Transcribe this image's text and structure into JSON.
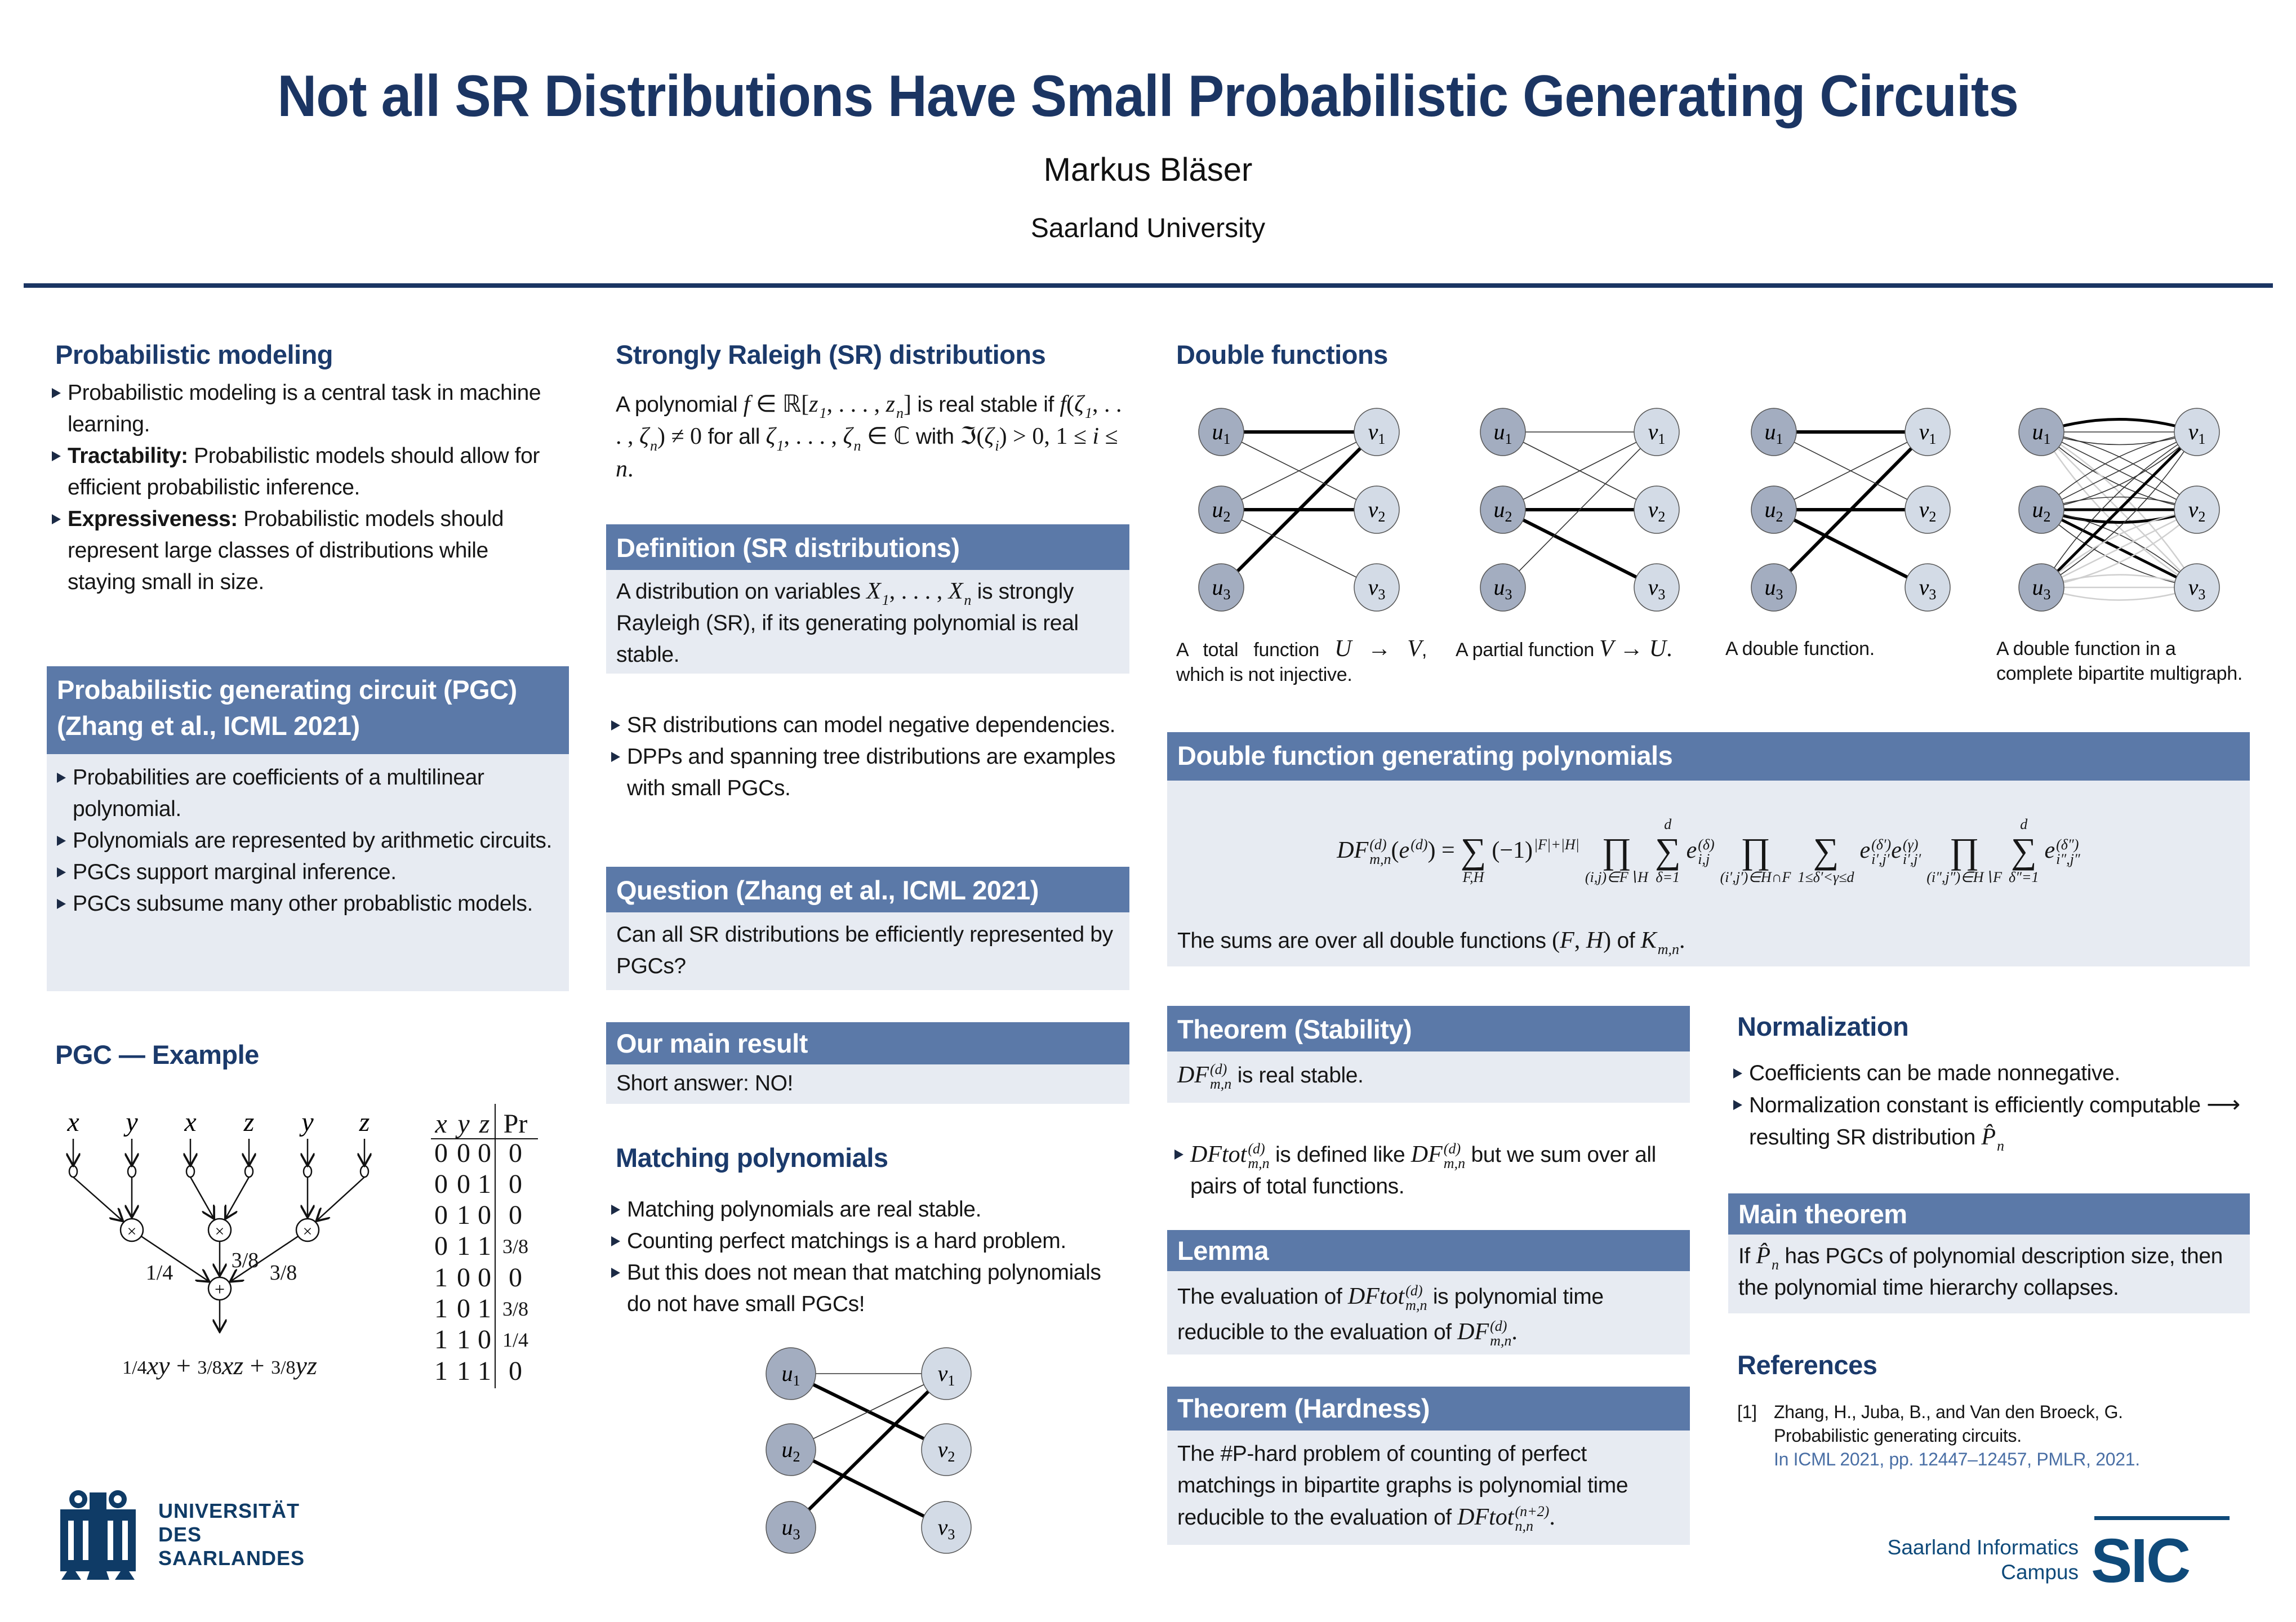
{
  "header": {
    "title": "Not all SR Distributions Have Small Probabilistic Generating Circuits",
    "author": "Markus Bläser",
    "affiliation": "Saarland University"
  },
  "colors": {
    "title": "#1b3563",
    "bar": "#5b79a8",
    "box": "#e7ebf2",
    "node_u": "#a3adc0",
    "node_v": "#d3dbe6"
  },
  "modeling": {
    "heading": "Probabilistic modeling",
    "bullets": [
      [
        {
          "t": "Probabilistic modeling is a central task in machine learning."
        }
      ],
      [
        {
          "b": "Tractability:"
        },
        {
          "t": " Probabilistic models should allow for efficient probabilistic inference."
        }
      ],
      [
        {
          "b": "Expressiveness:"
        },
        {
          "t": " Probabilistic models should represent large classes of distributions while staying small in size."
        }
      ]
    ]
  },
  "pgc": {
    "heading1": "Probabilistic generating circuit (PGC)",
    "heading2": "(Zhang et al., ICML 2021)",
    "bullets": [
      [
        {
          "t": "Probabilities are coefficients of a multilinear polynomial."
        }
      ],
      [
        {
          "t": "Polynomials are represented by arithmetic circuits."
        }
      ],
      [
        {
          "t": "PGCs support marginal inference."
        }
      ],
      [
        {
          "t": "PGCs subsume many other probablistic models."
        }
      ]
    ]
  },
  "example": {
    "heading": "PGC — Example",
    "inputs": [
      "x",
      "y",
      "x",
      "z",
      "y",
      "z"
    ],
    "product_symbol": "×",
    "sum_symbol": "+",
    "weights": [
      "1/4",
      "3/8",
      "3/8"
    ],
    "polynomial": [
      {
        "frac": "1/4",
        "term": "xy"
      },
      {
        "frac": "3/8",
        "term": "xz"
      },
      {
        "frac": "3/8",
        "term": "yz"
      }
    ],
    "plus": "+",
    "table": {
      "headers": [
        "x",
        "y",
        "z",
        "Pr"
      ],
      "rows": [
        [
          "0",
          "0",
          "0",
          "0"
        ],
        [
          "0",
          "0",
          "1",
          "0"
        ],
        [
          "0",
          "1",
          "0",
          "0"
        ],
        [
          "0",
          "1",
          "1",
          "3/8"
        ],
        [
          "1",
          "0",
          "0",
          "0"
        ],
        [
          "1",
          "0",
          "1",
          "3/8"
        ],
        [
          "1",
          "1",
          "0",
          "1/4"
        ],
        [
          "1",
          "1",
          "1",
          "0"
        ]
      ]
    }
  },
  "uds_logo": {
    "lines": [
      "UNIVERSITÄT",
      "DES",
      "SAARLANDES"
    ]
  },
  "sr": {
    "heading": "Strongly Raleigh (SR) distributions",
    "para": [
      {
        "t": "A polynomial "
      },
      {
        "m": "f"
      },
      {
        "r": " ∈ ℝ["
      },
      {
        "m": "z",
        "sub": "1"
      },
      {
        "r": ", . . . , "
      },
      {
        "m": "z",
        "sub": "n"
      },
      {
        "r": "]"
      },
      {
        "t": " is real stable if "
      },
      {
        "m": "f"
      },
      {
        "r": "("
      },
      {
        "m": "ζ",
        "sub": "1"
      },
      {
        "r": ", . . . , "
      },
      {
        "m": "ζ",
        "sub": "n"
      },
      {
        "r": ") ≠ 0"
      },
      {
        "t": " for all "
      },
      {
        "m": "ζ",
        "sub": "1"
      },
      {
        "r": ", . . . , "
      },
      {
        "m": "ζ",
        "sub": "n"
      },
      {
        "r": " ∈ ℂ"
      },
      {
        "t": " with "
      },
      {
        "r": "ℑ("
      },
      {
        "m": "ζ",
        "sub": "i"
      },
      {
        "r": ") > 0, 1 ≤ "
      },
      {
        "m": "i"
      },
      {
        "r": " ≤ "
      },
      {
        "m": "n"
      },
      {
        "r": "."
      }
    ]
  },
  "definition": {
    "heading": "Definition (SR distributions)",
    "body": [
      {
        "t": "A distribution on variables "
      },
      {
        "m": "X",
        "sub": "1"
      },
      {
        "r": ", . . . , "
      },
      {
        "m": "X",
        "sub": "n"
      },
      {
        "t": " is strongly Rayleigh (SR), if its generating polynomial is real stable."
      }
    ]
  },
  "sr_bullets": [
    [
      {
        "t": "SR distributions can model negative dependencies."
      }
    ],
    [
      {
        "t": "DPPs and spanning tree distributions are examples with small PGCs."
      }
    ]
  ],
  "question": {
    "heading": "Question (Zhang et al., ICML 2021)",
    "body": [
      {
        "t": "Can all SR distributions be efficiently represented by PGCs?"
      }
    ]
  },
  "main_result": {
    "heading": "Our main result",
    "body": [
      {
        "t": "Short answer: NO!"
      }
    ]
  },
  "matching": {
    "heading": "Matching polynomials",
    "bullets": [
      [
        {
          "t": "Matching polynomials are real stable."
        }
      ],
      [
        {
          "t": "Counting perfect matchings is a hard problem."
        }
      ],
      [
        {
          "t": "But this does not mean that matching polynomials do not have small PGCs!"
        }
      ]
    ],
    "graph": {
      "u": [
        "u1",
        "u2",
        "u3"
      ],
      "v": [
        "v1",
        "v2",
        "v3"
      ],
      "edges": [
        [
          1,
          1,
          "thin"
        ],
        [
          1,
          2,
          "bold"
        ],
        [
          2,
          1,
          "thin"
        ],
        [
          2,
          3,
          "bold"
        ],
        [
          3,
          1,
          "bold"
        ]
      ]
    }
  },
  "double_functions": {
    "heading": "Double functions",
    "graphs": [
      {
        "edges": [
          [
            1,
            1,
            "bold"
          ],
          [
            2,
            2,
            "bold"
          ],
          [
            3,
            1,
            "bold"
          ],
          [
            1,
            2,
            "thin"
          ],
          [
            2,
            1,
            "thin"
          ],
          [
            2,
            3,
            "thin"
          ]
        ],
        "caption": [
          {
            "t": "A total function "
          },
          {
            "m": "U"
          },
          {
            "r": " → "
          },
          {
            "m": "V"
          },
          {
            "t": ", which is not injective."
          }
        ]
      },
      {
        "edges": [
          [
            1,
            1,
            "mid"
          ],
          [
            2,
            2,
            "bold"
          ],
          [
            2,
            3,
            "bold"
          ],
          [
            1,
            2,
            "thin"
          ],
          [
            2,
            1,
            "thin"
          ],
          [
            3,
            1,
            "thin"
          ]
        ],
        "caption": [
          {
            "t": "A partial function "
          },
          {
            "m": "V"
          },
          {
            "r": " → "
          },
          {
            "m": "U"
          },
          {
            "r": "."
          }
        ]
      },
      {
        "edges": [
          [
            1,
            1,
            "bold"
          ],
          [
            2,
            2,
            "bold"
          ],
          [
            3,
            1,
            "bold"
          ],
          [
            2,
            3,
            "bold"
          ],
          [
            1,
            2,
            "thin"
          ],
          [
            2,
            1,
            "thin"
          ]
        ],
        "caption": [
          {
            "t": "A double function."
          }
        ]
      },
      {
        "multigraph": true,
        "bold": [
          [
            1,
            1,
            -1
          ],
          [
            2,
            2,
            0
          ],
          [
            2,
            2,
            1
          ],
          [
            3,
            1,
            0
          ],
          [
            2,
            3,
            0
          ]
        ],
        "light_pairs": [
          [
            1,
            3
          ],
          [
            3,
            2
          ],
          [
            3,
            3
          ]
        ],
        "caption": [
          {
            "t": "A double function in a complete bipartite multigraph."
          }
        ]
      }
    ],
    "u": [
      "u1",
      "u2",
      "u3"
    ],
    "v": [
      "v1",
      "v2",
      "v3"
    ]
  },
  "dfgp": {
    "heading": "Double function generating polynomials",
    "formula": [
      {
        "seg": [
          {
            "m": "DF",
            "sup": "(d)",
            "sub": "m,n"
          },
          {
            "r": "("
          },
          {
            "m": "e",
            "sup": "(d)"
          },
          {
            "r": ") ="
          }
        ]
      },
      {
        "op": "∑",
        "below": "F,H",
        "above": ""
      },
      {
        "seg": [
          {
            "r": "(−1)"
          },
          {
            "m": "",
            "sup": "|F|+|H|"
          }
        ]
      },
      {
        "op": "∏",
        "below": "(i,j)∈F∖H",
        "above": ""
      },
      {
        "op": "∑",
        "below": "δ=1",
        "above": "d"
      },
      {
        "seg": [
          {
            "m": "e",
            "sup": "(δ)",
            "sub": "i,j"
          }
        ]
      },
      {
        "op": "∏",
        "below": "(i′,j′)∈H∩F",
        "above": ""
      },
      {
        "op": "∑",
        "below": "1≤δ′<γ≤d",
        "above": ""
      },
      {
        "seg": [
          {
            "m": "e",
            "sup": "(δ′)",
            "sub": "i′,j′"
          },
          {
            "m": "e",
            "sup": "(γ)",
            "sub": "i′,j′"
          }
        ]
      },
      {
        "op": "∏",
        "below": "(i″,j″)∈H∖F",
        "above": ""
      },
      {
        "op": "∑",
        "below": "δ″=1",
        "above": "d"
      },
      {
        "seg": [
          {
            "m": "e",
            "sup": "(δ″)",
            "sub": "i″,j″"
          }
        ]
      }
    ],
    "note": [
      {
        "t": "The sums are over all double functions "
      },
      {
        "r": "("
      },
      {
        "m": "F"
      },
      {
        "r": ", "
      },
      {
        "m": "H"
      },
      {
        "r": ")"
      },
      {
        "t": " of "
      },
      {
        "m": "K",
        "sub": "m,n"
      },
      {
        "r": "."
      }
    ]
  },
  "stability": {
    "heading": "Theorem (Stability)",
    "body": [
      {
        "m": "DF",
        "sup": "(d)",
        "sub": "m,n"
      },
      {
        "t": " is real stable."
      }
    ]
  },
  "dftot_bullet": [
    [
      {
        "m": "DFtot",
        "sup": "(d)",
        "sub": "m,n"
      },
      {
        "t": " is defined like "
      },
      {
        "m": "DF",
        "sup": "(d)",
        "sub": "m,n"
      },
      {
        "t": " but we sum over all pairs of total functions."
      }
    ]
  ],
  "lemma": {
    "heading": "Lemma",
    "body": [
      {
        "t": "The evaluation of "
      },
      {
        "m": "DFtot",
        "sup": "(d)",
        "sub": "m,n"
      },
      {
        "t": " is polynomial time reducible to the evaluation of "
      },
      {
        "m": "DF",
        "sup": "(d)",
        "sub": "m,n"
      },
      {
        "r": "."
      }
    ]
  },
  "hardness": {
    "heading": "Theorem (Hardness)",
    "body": [
      {
        "t": "The #P-hard problem of counting of perfect matchings in bipartite graphs is polynomial time reducible to the evaluation of "
      },
      {
        "m": "DFtot",
        "sup": "(n+2)",
        "sub": "n,n"
      },
      {
        "r": "."
      }
    ]
  },
  "normalization": {
    "heading": "Normalization",
    "bullets": [
      [
        {
          "t": "Coefficients can be made nonnegative."
        }
      ],
      [
        {
          "t": "Normalization constant is efficiently computable "
        },
        {
          "r": "⟶"
        },
        {
          "t": " resulting SR distribution "
        },
        {
          "m": "P̂",
          "sub": "n"
        }
      ]
    ]
  },
  "main_theorem": {
    "heading": "Main theorem",
    "body": [
      {
        "t": "If "
      },
      {
        "m": "P̂",
        "sub": "n"
      },
      {
        "t": " has PGCs of polynomial description size, then the polynomial time hierarchy collapses."
      }
    ]
  },
  "references": {
    "heading": "References",
    "items": [
      {
        "label": "[1]",
        "authors": "Zhang, H., Juba, B., and Van den Broeck, G.",
        "title": "Probabilistic generating circuits.",
        "venue": "In ICML 2021, pp. 12447–12457, PMLR, 2021."
      }
    ]
  },
  "sic_logo": {
    "line1": "Saarland Informatics",
    "line2": "Campus",
    "mark": "SIC"
  }
}
